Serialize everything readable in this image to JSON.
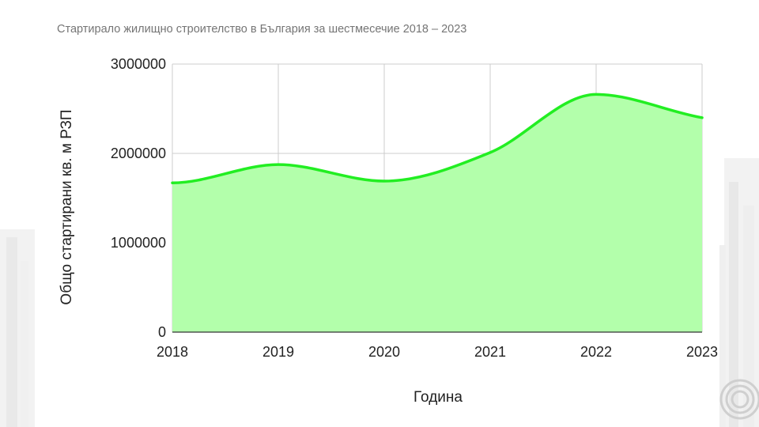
{
  "chart_data": {
    "type": "area",
    "title": "Стартирало жилищно строителство в България за шестмесечие 2018 – 2023",
    "xlabel": "Година",
    "ylabel": "Общо стартирани кв. м РЗП",
    "x": [
      2018,
      2019,
      2020,
      2021,
      2022,
      2023
    ],
    "x_tick_labels": [
      "2018",
      "2019",
      "2020",
      "2021",
      "2022",
      "2023"
    ],
    "y_ticks": [
      0,
      1000000,
      2000000,
      3000000
    ],
    "y_tick_labels": [
      "0",
      "1000000",
      "2000000",
      "3000000"
    ],
    "ylim": [
      0,
      3000000
    ],
    "series": [
      {
        "values": [
          1670000,
          1875000,
          1690000,
          2010000,
          2660000,
          2400000
        ]
      }
    ],
    "grid": true,
    "legend": "none",
    "colors": {
      "line": "#22ee22",
      "fill": "#b3ffab",
      "grid": "#cccccc"
    }
  }
}
